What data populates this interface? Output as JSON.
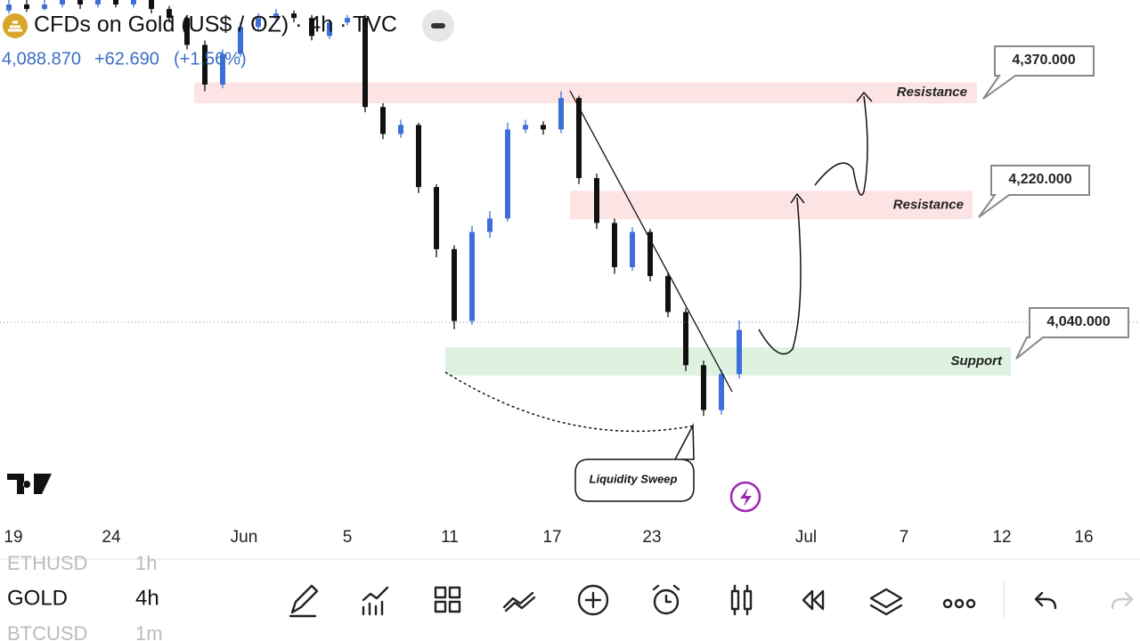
{
  "header": {
    "symbol": "CFDs on Gold (US$ / OZ) · 4h · TVC",
    "price": "4,088.870",
    "change": "+62.690",
    "change_pct": "(+1.56%)"
  },
  "chart_data": {
    "type": "candlestick",
    "up_color": "#3d6fd8",
    "down_color": "#111111",
    "ylim": [
      3792,
      4494
    ],
    "x_labels": [
      "19",
      "24",
      "Jun",
      "5",
      "11",
      "17",
      "23",
      "Jul",
      "7",
      "12",
      "16"
    ],
    "candles": [
      [
        4480,
        4494,
        4476,
        4488
      ],
      [
        4488,
        4494,
        4478,
        4482
      ],
      [
        4482,
        4494,
        4480,
        4488
      ],
      [
        4488,
        4494,
        4484,
        4494
      ],
      [
        4494,
        4494,
        4482,
        4488
      ],
      [
        4488,
        4494,
        4484,
        4494
      ],
      [
        4494,
        4494,
        4484,
        4488
      ],
      [
        4488,
        4494,
        4484,
        4494
      ],
      [
        4494,
        4494,
        4476,
        4482
      ],
      [
        4482,
        4486,
        4464,
        4470
      ],
      [
        4470,
        4474,
        4428,
        4434
      ],
      [
        4434,
        4440,
        4372,
        4381
      ],
      [
        4381,
        4428,
        4376,
        4422
      ],
      [
        4422,
        4464,
        4418,
        4458
      ],
      [
        4458,
        4476,
        4452,
        4470
      ],
      [
        4470,
        4482,
        4464,
        4476
      ],
      [
        4476,
        4480,
        4464,
        4470
      ],
      [
        4470,
        4474,
        4440,
        4446
      ],
      [
        4446,
        4468,
        4442,
        4464
      ],
      [
        4464,
        4474,
        4460,
        4470
      ],
      [
        4470,
        4474,
        4344,
        4351
      ],
      [
        4351,
        4356,
        4308,
        4315
      ],
      [
        4315,
        4334,
        4310,
        4327
      ],
      [
        4327,
        4330,
        4236,
        4244
      ],
      [
        4244,
        4248,
        4150,
        4161
      ],
      [
        4161,
        4166,
        4054,
        4065
      ],
      [
        4065,
        4192,
        4060,
        4184
      ],
      [
        4184,
        4212,
        4176,
        4202
      ],
      [
        4202,
        4330,
        4198,
        4321
      ],
      [
        4321,
        4334,
        4316,
        4327
      ],
      [
        4327,
        4332,
        4314,
        4321
      ],
      [
        4321,
        4372,
        4316,
        4363
      ],
      [
        4363,
        4366,
        4248,
        4256
      ],
      [
        4256,
        4262,
        4188,
        4196
      ],
      [
        4196,
        4202,
        4128,
        4137
      ],
      [
        4137,
        4190,
        4132,
        4184
      ],
      [
        4184,
        4188,
        4118,
        4125
      ],
      [
        4125,
        4130,
        4070,
        4077
      ],
      [
        4077,
        4082,
        3998,
        4006
      ],
      [
        4006,
        4012,
        3938,
        3946
      ],
      [
        3946,
        4000,
        3940,
        3994
      ],
      [
        3994,
        4066,
        3988,
        4053
      ]
    ],
    "zones": [
      {
        "label": "Resistance",
        "low": 4356,
        "high": 4384
      },
      {
        "label": "Resistance",
        "low": 4201,
        "high": 4239
      },
      {
        "label": "Support",
        "low": 3992,
        "high": 4030
      }
    ],
    "callouts": [
      "4,370.000",
      "4,220.000",
      "4,040.000"
    ],
    "annotation": "Liquidity Sweep"
  },
  "watchlist": [
    [
      "ETHUSD",
      "1h"
    ],
    [
      "GOLD",
      "4h"
    ],
    [
      "BTCUSD",
      "1m"
    ]
  ]
}
